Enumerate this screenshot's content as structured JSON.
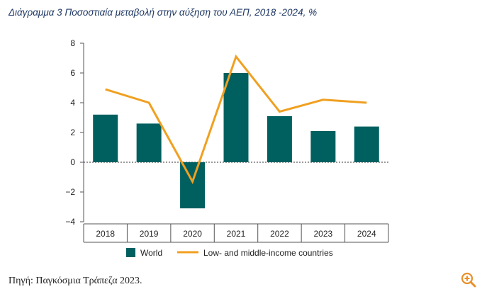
{
  "caption": "Διάγραμμα  3 Ποσοστιαία μεταβολή στην αύξηση του ΑΕΠ, 2018 -2024, %",
  "source": "Πηγή: Παγκόσμια Τράπεζα 2023.",
  "zoom_icon": "zoom-in-icon",
  "colors": {
    "bar": "#006060",
    "line": "#f0a020",
    "axis": "#555555",
    "accent": "#e8902a"
  },
  "chart_data": {
    "type": "bar",
    "categories": [
      "2018",
      "2019",
      "2020",
      "2021",
      "2022",
      "2023",
      "2024"
    ],
    "ylim": [
      -4,
      8
    ],
    "yticks": [
      "−4",
      "−2",
      "0",
      "2",
      "4",
      "6",
      "8"
    ],
    "ytick_values": [
      -4,
      -2,
      0,
      2,
      4,
      6,
      8
    ],
    "series": [
      {
        "name": "World",
        "kind": "bar",
        "values": [
          3.2,
          2.6,
          -3.1,
          6.0,
          3.1,
          2.1,
          2.4
        ]
      },
      {
        "name": "Low- and middle-income countries",
        "kind": "line",
        "values": [
          4.9,
          4.0,
          -1.3,
          7.1,
          3.4,
          4.2,
          4.0
        ]
      }
    ],
    "legend_position": "bottom",
    "grid": false
  }
}
